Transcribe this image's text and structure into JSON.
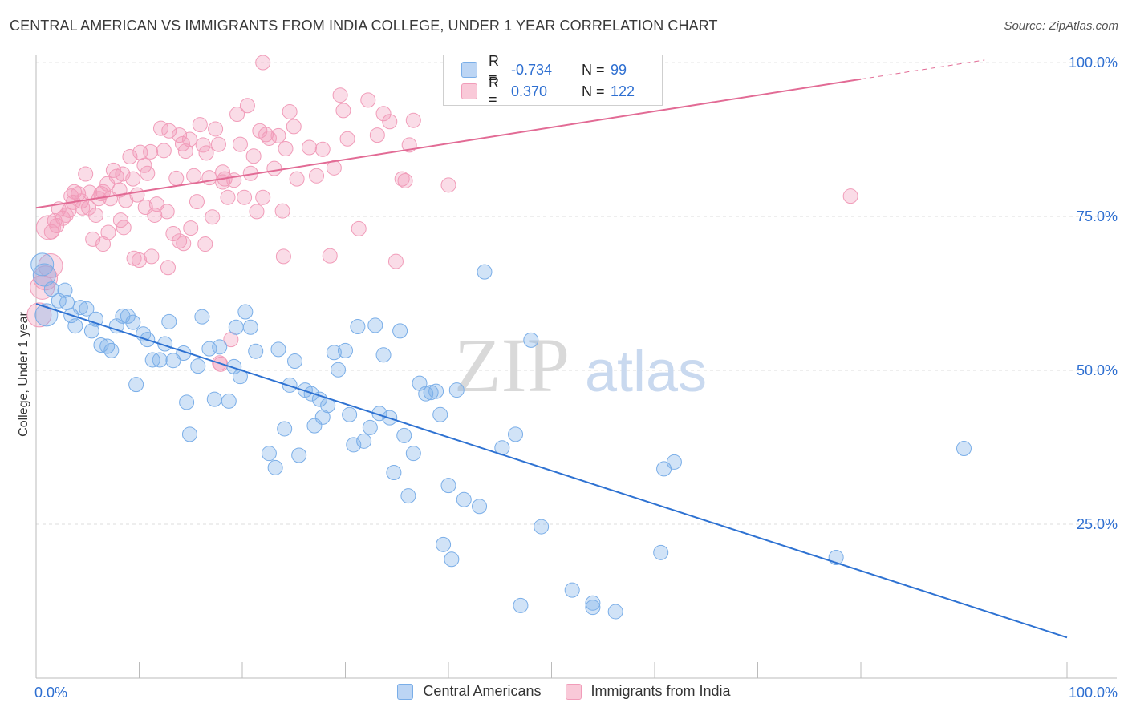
{
  "title": "CENTRAL AMERICAN VS IMMIGRANTS FROM INDIA COLLEGE, UNDER 1 YEAR CORRELATION CHART",
  "source": "Source: ZipAtlas.com",
  "watermark": {
    "zip": "ZIP",
    "atlas": "atlas"
  },
  "legend": {
    "rows": [
      {
        "r_label": "R =",
        "r_value": "-0.734",
        "n_label": "N =",
        "n_value": "99",
        "color": "#7aaee8"
      },
      {
        "r_label": "R =",
        "r_value": "0.370",
        "n_label": "N =",
        "n_value": "122",
        "color": "#f19cb9"
      }
    ]
  },
  "bottom_legend": [
    {
      "label": "Central Americans",
      "color": "#7aaee8"
    },
    {
      "label": "Immigrants from India",
      "color": "#f19cb9"
    }
  ],
  "chart_data": {
    "type": "scatter",
    "title": "CENTRAL AMERICAN VS IMMIGRANTS FROM INDIA COLLEGE, UNDER 1 YEAR CORRELATION CHART",
    "xlabel": "",
    "ylabel": "College, Under 1 year",
    "xlim": [
      0,
      100
    ],
    "ylim": [
      0,
      103
    ],
    "x_tick_labels": [
      "0.0%",
      "100.0%"
    ],
    "y_ticks": [
      25,
      50,
      75,
      100
    ],
    "y_tick_labels": [
      "25.0%",
      "50.0%",
      "75.0%",
      "100.0%"
    ],
    "grid": true,
    "legend_position": "top-center",
    "series": [
      {
        "name": "Central Americans",
        "color": "#7aaee8",
        "line_color": "#2e72d2",
        "trend": {
          "x": [
            0,
            100
          ],
          "y": [
            60.8,
            6.6
          ]
        },
        "points": [
          [
            0.6,
            67.2
          ],
          [
            0.8,
            65.5
          ],
          [
            1.5,
            63.2
          ],
          [
            2.2,
            61.3
          ],
          [
            2.8,
            63.0
          ],
          [
            3.4,
            58.9
          ],
          [
            3.8,
            57.2
          ],
          [
            4.3,
            60.2
          ],
          [
            4.9,
            60.0
          ],
          [
            5.4,
            56.4
          ],
          [
            5.8,
            58.3
          ],
          [
            6.3,
            54.1
          ],
          [
            6.9,
            53.9
          ],
          [
            7.3,
            53.2
          ],
          [
            7.8,
            57.2
          ],
          [
            8.4,
            58.8
          ],
          [
            8.9,
            58.8
          ],
          [
            9.4,
            57.8
          ],
          [
            9.7,
            47.7
          ],
          [
            10.4,
            55.9
          ],
          [
            10.8,
            55.0
          ],
          [
            11.3,
            51.7
          ],
          [
            12.0,
            51.7
          ],
          [
            12.5,
            54.3
          ],
          [
            12.9,
            57.9
          ],
          [
            13.3,
            51.6
          ],
          [
            14.3,
            52.8
          ],
          [
            14.6,
            44.8
          ],
          [
            14.9,
            39.6
          ],
          [
            15.7,
            50.7
          ],
          [
            16.1,
            58.7
          ],
          [
            16.8,
            53.5
          ],
          [
            17.3,
            45.3
          ],
          [
            17.8,
            53.8
          ],
          [
            18.7,
            45.0
          ],
          [
            19.2,
            50.6
          ],
          [
            19.4,
            57.0
          ],
          [
            19.8,
            49.0
          ],
          [
            20.3,
            59.5
          ],
          [
            20.8,
            57.0
          ],
          [
            21.3,
            53.1
          ],
          [
            22.6,
            36.5
          ],
          [
            23.2,
            34.2
          ],
          [
            23.5,
            53.4
          ],
          [
            24.1,
            40.5
          ],
          [
            24.6,
            47.6
          ],
          [
            25.1,
            51.5
          ],
          [
            25.5,
            36.2
          ],
          [
            26.1,
            46.8
          ],
          [
            26.7,
            46.2
          ],
          [
            27.0,
            41.0
          ],
          [
            27.5,
            45.3
          ],
          [
            27.8,
            42.4
          ],
          [
            28.3,
            44.3
          ],
          [
            28.9,
            52.9
          ],
          [
            29.3,
            50.1
          ],
          [
            30.0,
            53.2
          ],
          [
            30.4,
            42.8
          ],
          [
            30.8,
            37.9
          ],
          [
            31.2,
            57.1
          ],
          [
            31.8,
            38.5
          ],
          [
            32.4,
            40.7
          ],
          [
            32.9,
            57.3
          ],
          [
            33.3,
            43.0
          ],
          [
            33.7,
            52.5
          ],
          [
            34.3,
            42.3
          ],
          [
            34.7,
            33.4
          ],
          [
            35.3,
            56.4
          ],
          [
            35.7,
            39.4
          ],
          [
            36.1,
            29.6
          ],
          [
            36.6,
            36.5
          ],
          [
            37.2,
            47.9
          ],
          [
            37.8,
            46.2
          ],
          [
            38.3,
            46.4
          ],
          [
            38.8,
            46.6
          ],
          [
            39.2,
            42.8
          ],
          [
            39.5,
            21.7
          ],
          [
            40.0,
            31.3
          ],
          [
            40.3,
            19.3
          ],
          [
            40.8,
            46.8
          ],
          [
            41.5,
            29.0
          ],
          [
            43.0,
            27.9
          ],
          [
            45.2,
            37.4
          ],
          [
            46.5,
            39.6
          ],
          [
            47.0,
            11.8
          ],
          [
            48.0,
            54.9
          ],
          [
            49.0,
            24.6
          ],
          [
            52.0,
            14.3
          ],
          [
            54.0,
            12.2
          ],
          [
            56.2,
            10.8
          ],
          [
            54.0,
            11.5
          ],
          [
            60.6,
            20.4
          ],
          [
            60.9,
            34.0
          ],
          [
            61.9,
            35.1
          ],
          [
            43.5,
            66.0
          ],
          [
            77.6,
            19.6
          ],
          [
            90.0,
            37.3
          ],
          [
            1.0,
            59.0
          ],
          [
            3.0,
            61.0
          ]
        ]
      },
      {
        "name": "Immigrants from India",
        "color": "#f19cb9",
        "line_color": "#e26b95",
        "trend": {
          "x": [
            0,
            80,
            92
          ],
          "y": [
            76.4,
            97.3,
            100.4
          ]
        },
        "points": [
          [
            0.3,
            59.0
          ],
          [
            0.6,
            63.5
          ],
          [
            0.9,
            65.0
          ],
          [
            1.2,
            73.2
          ],
          [
            1.5,
            72.5
          ],
          [
            1.8,
            74.3
          ],
          [
            2.2,
            76.2
          ],
          [
            2.6,
            74.7
          ],
          [
            2.9,
            75.2
          ],
          [
            3.2,
            76.0
          ],
          [
            3.4,
            78.3
          ],
          [
            3.7,
            79.0
          ],
          [
            4.1,
            78.7
          ],
          [
            4.5,
            76.4
          ],
          [
            4.8,
            81.9
          ],
          [
            5.2,
            78.9
          ],
          [
            5.5,
            71.3
          ],
          [
            5.8,
            75.2
          ],
          [
            6.1,
            77.9
          ],
          [
            6.3,
            78.7
          ],
          [
            6.5,
            79.0
          ],
          [
            6.9,
            80.3
          ],
          [
            7.2,
            77.9
          ],
          [
            7.5,
            82.5
          ],
          [
            7.8,
            81.5
          ],
          [
            8.1,
            79.3
          ],
          [
            8.4,
            81.9
          ],
          [
            8.7,
            77.6
          ],
          [
            9.1,
            84.7
          ],
          [
            9.4,
            81.1
          ],
          [
            9.8,
            78.5
          ],
          [
            10.1,
            85.4
          ],
          [
            10.5,
            83.3
          ],
          [
            10.8,
            82.0
          ],
          [
            11.1,
            85.5
          ],
          [
            11.5,
            75.2
          ],
          [
            11.7,
            77.0
          ],
          [
            12.1,
            89.3
          ],
          [
            12.4,
            85.7
          ],
          [
            12.7,
            75.8
          ],
          [
            12.9,
            88.9
          ],
          [
            13.3,
            72.2
          ],
          [
            13.6,
            81.2
          ],
          [
            13.9,
            88.2
          ],
          [
            14.2,
            86.8
          ],
          [
            14.5,
            85.6
          ],
          [
            14.9,
            87.5
          ],
          [
            15.3,
            81.6
          ],
          [
            15.6,
            77.4
          ],
          [
            15.9,
            89.9
          ],
          [
            16.2,
            86.6
          ],
          [
            16.5,
            85.3
          ],
          [
            16.8,
            81.3
          ],
          [
            17.1,
            74.9
          ],
          [
            17.4,
            89.2
          ],
          [
            17.7,
            86.7
          ],
          [
            18.1,
            82.2
          ],
          [
            18.3,
            81.1
          ],
          [
            18.6,
            78.1
          ],
          [
            18.9,
            55.0
          ],
          [
            19.2,
            80.9
          ],
          [
            19.5,
            91.6
          ],
          [
            19.8,
            86.7
          ],
          [
            20.2,
            78.1
          ],
          [
            20.5,
            93.0
          ],
          [
            20.8,
            82.0
          ],
          [
            21.1,
            84.8
          ],
          [
            21.4,
            75.8
          ],
          [
            21.7,
            88.9
          ],
          [
            22.0,
            78.1
          ],
          [
            22.3,
            88.3
          ],
          [
            22.6,
            87.7
          ],
          [
            23.1,
            82.8
          ],
          [
            23.5,
            88.1
          ],
          [
            23.9,
            75.9
          ],
          [
            24.2,
            86.0
          ],
          [
            24.6,
            92.0
          ],
          [
            25.0,
            89.6
          ],
          [
            25.3,
            81.1
          ],
          [
            26.5,
            86.2
          ],
          [
            27.2,
            81.6
          ],
          [
            27.8,
            85.9
          ],
          [
            28.5,
            68.6
          ],
          [
            28.9,
            82.9
          ],
          [
            29.5,
            94.7
          ],
          [
            29.8,
            92.2
          ],
          [
            30.2,
            87.6
          ],
          [
            31.3,
            73.0
          ],
          [
            32.2,
            93.9
          ],
          [
            33.1,
            88.2
          ],
          [
            33.7,
            91.7
          ],
          [
            34.3,
            90.4
          ],
          [
            34.9,
            67.7
          ],
          [
            35.5,
            81.1
          ],
          [
            35.8,
            80.8
          ],
          [
            36.2,
            86.6
          ],
          [
            36.6,
            90.6
          ],
          [
            40.0,
            80.1
          ],
          [
            6.5,
            70.5
          ],
          [
            8.5,
            73.2
          ],
          [
            9.5,
            68.2
          ],
          [
            10.0,
            67.9
          ],
          [
            12.8,
            66.7
          ],
          [
            13.9,
            71.0
          ],
          [
            14.3,
            70.6
          ],
          [
            16.4,
            70.5
          ],
          [
            17.8,
            51.2
          ],
          [
            11.2,
            68.5
          ],
          [
            79.0,
            78.3
          ],
          [
            1.4,
            67.0
          ],
          [
            2.0,
            73.5
          ],
          [
            3.6,
            77.3
          ],
          [
            4.4,
            77.5
          ],
          [
            5.1,
            76.4
          ],
          [
            7.0,
            72.4
          ],
          [
            8.2,
            74.4
          ],
          [
            10.6,
            76.5
          ],
          [
            15.0,
            73.1
          ],
          [
            17.9,
            51.0
          ],
          [
            22.0,
            100.0
          ],
          [
            18.1,
            80.6
          ],
          [
            24.0,
            68.5
          ]
        ]
      }
    ]
  }
}
